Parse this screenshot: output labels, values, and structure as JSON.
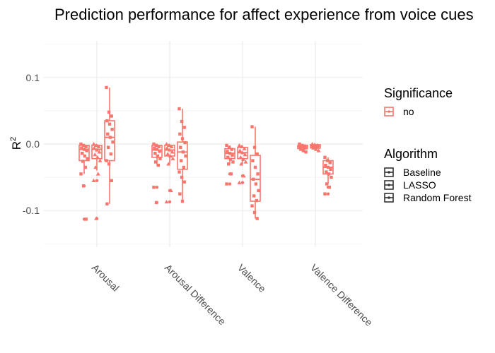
{
  "chart_data": {
    "type": "box",
    "title": "Prediction performance for affect experience from voice cues",
    "ylabel_base": "R",
    "ylabel_sup": "2",
    "xlabel": "",
    "ylim": [
      -0.155,
      0.155
    ],
    "yticks": [
      0.1,
      0.0,
      -0.1
    ],
    "ytick_labels": [
      "0.1",
      "0.0",
      "-0.1"
    ],
    "grid": true,
    "categories": [
      "Arousal",
      "Arousal Difference",
      "Valence",
      "Valence Difference"
    ],
    "legend_placement": "right",
    "colors": {
      "no": "#F8766D"
    },
    "legend": {
      "significance": {
        "title": "Significance",
        "items": [
          "no"
        ]
      },
      "algorithm": {
        "title": "Algorithm",
        "items": [
          "Baseline",
          "LASSO",
          "Random Forest"
        ]
      }
    },
    "series": [
      {
        "name": "Baseline",
        "boxes": [
          {
            "category": "Arousal",
            "q1": -0.025,
            "median": -0.008,
            "q3": -0.002,
            "whisker_low": -0.045,
            "whisker_high": 0.0,
            "outliers": [
              -0.063,
              -0.113
            ]
          },
          {
            "category": "Arousal Difference",
            "q1": -0.02,
            "median": -0.009,
            "q3": -0.002,
            "whisker_low": -0.032,
            "whisker_high": 0.0,
            "outliers": [
              -0.065,
              -0.088
            ]
          },
          {
            "category": "Valence",
            "q1": -0.022,
            "median": -0.014,
            "q3": -0.007,
            "whisker_low": -0.03,
            "whisker_high": -0.002,
            "outliers": [
              -0.045,
              -0.06
            ]
          },
          {
            "category": "Valence Difference",
            "q1": -0.007,
            "median": -0.004,
            "q3": -0.002,
            "whisker_low": -0.012,
            "whisker_high": 0.0,
            "outliers": []
          }
        ]
      },
      {
        "name": "LASSO",
        "boxes": [
          {
            "category": "Arousal",
            "q1": -0.022,
            "median": -0.008,
            "q3": -0.002,
            "whisker_low": -0.04,
            "whisker_high": 0.0,
            "outliers": [
              -0.055,
              -0.112
            ]
          },
          {
            "category": "Arousal Difference",
            "q1": -0.018,
            "median": -0.009,
            "q3": -0.002,
            "whisker_low": -0.03,
            "whisker_high": 0.0,
            "outliers": [
              -0.07,
              -0.087
            ]
          },
          {
            "category": "Valence",
            "q1": -0.022,
            "median": -0.013,
            "q3": -0.005,
            "whisker_low": -0.03,
            "whisker_high": -0.002,
            "outliers": [
              -0.048,
              -0.058
            ]
          },
          {
            "category": "Valence Difference",
            "q1": -0.006,
            "median": -0.003,
            "q3": -0.001,
            "whisker_low": -0.01,
            "whisker_high": 0.0,
            "outliers": []
          }
        ]
      },
      {
        "name": "Random Forest",
        "boxes": [
          {
            "category": "Arousal",
            "q1": -0.025,
            "median": 0.01,
            "q3": 0.035,
            "whisker_low": -0.09,
            "whisker_high": 0.085,
            "outliers": []
          },
          {
            "category": "Arousal Difference",
            "q1": -0.038,
            "median": -0.012,
            "q3": 0.003,
            "whisker_low": -0.086,
            "whisker_high": 0.053,
            "outliers": []
          },
          {
            "category": "Valence",
            "q1": -0.086,
            "median": -0.053,
            "q3": -0.017,
            "whisker_low": -0.112,
            "whisker_high": 0.026,
            "outliers": []
          },
          {
            "category": "Valence Difference",
            "q1": -0.045,
            "median": -0.035,
            "q3": -0.025,
            "whisker_low": -0.06,
            "whisker_high": -0.02,
            "outliers": [
              -0.065,
              -0.075
            ]
          }
        ]
      }
    ],
    "points": [
      {
        "category": "Arousal",
        "groups": [
          {
            "algorithm": "Baseline",
            "values": [
              0.0,
              -0.002,
              -0.004,
              -0.006,
              -0.008,
              -0.01,
              -0.014,
              -0.018,
              -0.022,
              -0.026,
              -0.035,
              -0.045,
              -0.063,
              -0.113
            ]
          },
          {
            "algorithm": "LASSO",
            "values": [
              0.0,
              -0.002,
              -0.004,
              -0.006,
              -0.009,
              -0.012,
              -0.016,
              -0.02,
              -0.025,
              -0.035,
              -0.045,
              -0.055,
              -0.112
            ]
          },
          {
            "algorithm": "Random Forest",
            "values": [
              0.085,
              0.048,
              0.042,
              0.035,
              0.03,
              0.022,
              0.015,
              0.01,
              0.003,
              -0.005,
              -0.015,
              -0.025,
              -0.03,
              -0.055,
              -0.09
            ]
          }
        ]
      },
      {
        "category": "Arousal Difference",
        "groups": [
          {
            "algorithm": "Baseline",
            "values": [
              0.0,
              -0.002,
              -0.004,
              -0.006,
              -0.008,
              -0.011,
              -0.014,
              -0.018,
              -0.022,
              -0.027,
              -0.032,
              -0.065,
              -0.088
            ]
          },
          {
            "algorithm": "LASSO",
            "values": [
              0.0,
              -0.002,
              -0.004,
              -0.006,
              -0.009,
              -0.012,
              -0.015,
              -0.018,
              -0.022,
              -0.03,
              -0.07,
              -0.087
            ]
          },
          {
            "algorithm": "Random Forest",
            "values": [
              0.053,
              0.034,
              0.025,
              0.015,
              0.008,
              0.002,
              -0.005,
              -0.012,
              -0.018,
              -0.025,
              -0.035,
              -0.042,
              -0.05,
              -0.057,
              -0.075,
              -0.086
            ]
          }
        ]
      },
      {
        "category": "Valence",
        "groups": [
          {
            "algorithm": "Baseline",
            "values": [
              -0.002,
              -0.005,
              -0.008,
              -0.011,
              -0.014,
              -0.017,
              -0.02,
              -0.023,
              -0.027,
              -0.03,
              -0.045,
              -0.06
            ]
          },
          {
            "algorithm": "LASSO",
            "values": [
              -0.002,
              -0.004,
              -0.007,
              -0.01,
              -0.013,
              -0.016,
              -0.02,
              -0.023,
              -0.027,
              -0.03,
              -0.048,
              -0.058
            ]
          },
          {
            "algorithm": "Random Forest",
            "values": [
              0.026,
              -0.005,
              -0.015,
              -0.025,
              -0.035,
              -0.045,
              -0.053,
              -0.06,
              -0.07,
              -0.078,
              -0.085,
              -0.093,
              -0.103,
              -0.112
            ]
          }
        ]
      },
      {
        "category": "Valence Difference",
        "groups": [
          {
            "algorithm": "Baseline",
            "values": [
              0.0,
              -0.002,
              -0.003,
              -0.004,
              -0.005,
              -0.006,
              -0.008,
              -0.01,
              -0.012
            ]
          },
          {
            "algorithm": "LASSO",
            "values": [
              0.0,
              -0.001,
              -0.002,
              -0.003,
              -0.004,
              -0.005,
              -0.006,
              -0.008,
              -0.01
            ]
          },
          {
            "algorithm": "Random Forest",
            "values": [
              -0.02,
              -0.025,
              -0.028,
              -0.032,
              -0.035,
              -0.038,
              -0.042,
              -0.045,
              -0.05,
              -0.06,
              -0.065,
              -0.075
            ]
          }
        ]
      }
    ]
  }
}
